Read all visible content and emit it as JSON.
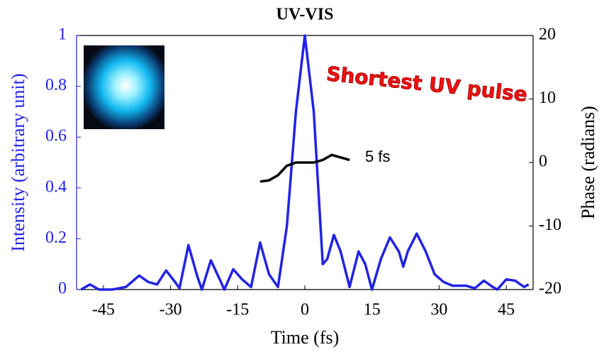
{
  "chart_data": {
    "type": "line",
    "title": "UV-VIS",
    "x_label": "Time (fs)",
    "y_label": "Intensity (arbitrary unit)",
    "y2_label": "Phase (radians)",
    "annotations": [
      "Shortest UV pulse",
      "5 fs"
    ],
    "xlim": [
      -51,
      51
    ],
    "xticks": [
      -45,
      -30,
      -15,
      0,
      15,
      30,
      45
    ],
    "ylim": [
      0,
      1
    ],
    "yticks": [
      0,
      0.2,
      0.4,
      0.6,
      0.8,
      1
    ],
    "y2lim": [
      -20,
      20
    ],
    "y2ticks": [
      -20,
      -10,
      0,
      10,
      20
    ],
    "series": [
      {
        "name": "Intensity",
        "color": "#2222e6",
        "x": [
          -50,
          -48,
          -46,
          -43,
          -40,
          -37,
          -35,
          -33,
          -31,
          -29,
          -28,
          -26,
          -24,
          -23,
          -21,
          -19,
          -18,
          -16,
          -14,
          -12,
          -10,
          -8,
          -6,
          -4,
          -2,
          0,
          2,
          4,
          5,
          6.5,
          8,
          10,
          12,
          13.5,
          15,
          17,
          19,
          21,
          22,
          23,
          25,
          27,
          29,
          31,
          33,
          36,
          38,
          40,
          42,
          43,
          45,
          47,
          49,
          50
        ],
        "values": [
          0,
          0.02,
          0,
          0,
          0.01,
          0.055,
          0.03,
          0.02,
          0.075,
          0.03,
          0.005,
          0.175,
          0.05,
          0,
          0.115,
          0.04,
          0,
          0.08,
          0.04,
          0.01,
          0.185,
          0.06,
          0.01,
          0.25,
          0.7,
          1.0,
          0.7,
          0.1,
          0.12,
          0.215,
          0.15,
          0.01,
          0.15,
          0.1,
          0,
          0.12,
          0.205,
          0.15,
          0.09,
          0.15,
          0.22,
          0.15,
          0.06,
          0.03,
          0.015,
          0.015,
          0.005,
          0.035,
          0.01,
          0,
          0.04,
          0.035,
          0.01,
          0.02
        ]
      },
      {
        "name": "Phase",
        "color": "#000000",
        "axis": "y2",
        "x": [
          -10,
          -8,
          -6,
          -4,
          -2,
          0,
          2,
          4,
          6,
          8,
          10
        ],
        "values": [
          -3,
          -2.8,
          -2,
          -0.5,
          0,
          0,
          0,
          0.4,
          1.2,
          0.8,
          0.4
        ]
      }
    ]
  }
}
